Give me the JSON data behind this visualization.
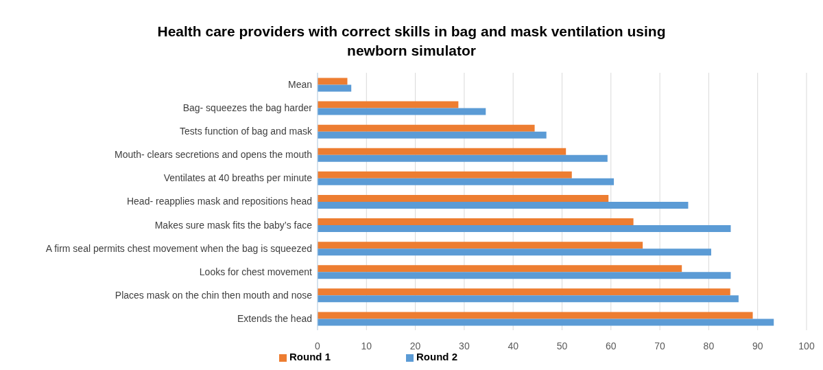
{
  "chart_data": {
    "type": "bar",
    "orientation": "horizontal",
    "title": "Health care providers with correct skills in bag and mask ventilation using newborn simulator",
    "categories": [
      "Mean",
      "Bag- squeezes the bag harder",
      "Tests function of bag and mask",
      "Mouth- clears secretions and opens the mouth",
      "Ventilates at 40 breaths per minute",
      "Head- reapplies mask and repositions head",
      "Makes sure mask fits the baby’s face",
      "A firm seal permits chest movement when the bag is squeezed",
      "Looks for chest movement",
      "Places mask on the chin then mouth and nose",
      "Extends the head"
    ],
    "series": [
      {
        "name": "Round 1",
        "color": "#ed7d31",
        "values": [
          6.1,
          28.8,
          44.4,
          50.8,
          52.0,
          59.5,
          64.6,
          66.5,
          74.5,
          84.4,
          89.0
        ]
      },
      {
        "name": "Round 2",
        "color": "#5b9bd5",
        "values": [
          6.9,
          34.4,
          46.8,
          59.3,
          60.6,
          75.8,
          84.5,
          80.5,
          84.5,
          86.1,
          93.3
        ]
      }
    ],
    "xlim": [
      0,
      100
    ],
    "xticks": [
      0,
      10,
      20,
      30,
      40,
      50,
      60,
      70,
      80,
      90,
      100
    ],
    "grid": "x",
    "legend": "bottom"
  }
}
